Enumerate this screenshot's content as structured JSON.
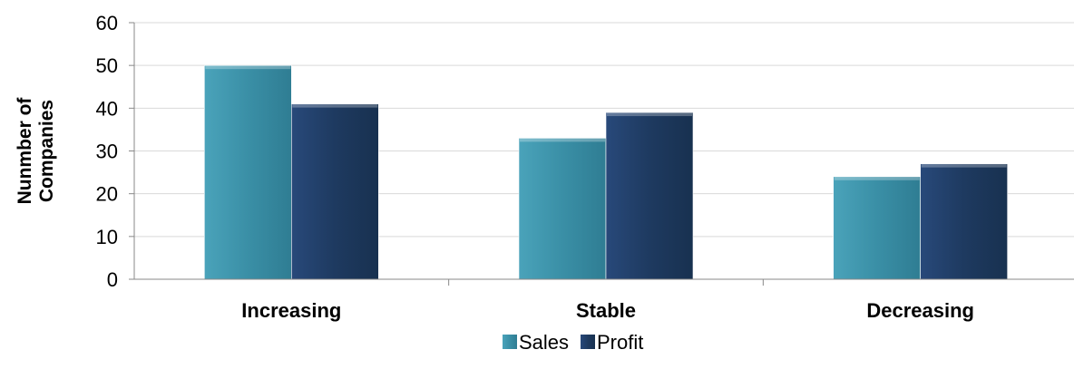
{
  "chart_data": {
    "type": "bar",
    "categories": [
      "Increasing",
      "Stable",
      "Decreasing"
    ],
    "series": [
      {
        "name": "Sales",
        "values": [
          50,
          33,
          24
        ],
        "color": "#3a8fa6"
      },
      {
        "name": "Profit",
        "values": [
          41,
          39,
          27
        ],
        "color": "#1e3a60"
      }
    ],
    "ylabel_lines": [
      "Nunmber of",
      "Companies"
    ],
    "ylim": [
      0,
      60
    ],
    "yticks": [
      "0",
      "10",
      "20",
      "30",
      "40",
      "50",
      "60"
    ],
    "grid": true,
    "legend_position": "bottom"
  }
}
